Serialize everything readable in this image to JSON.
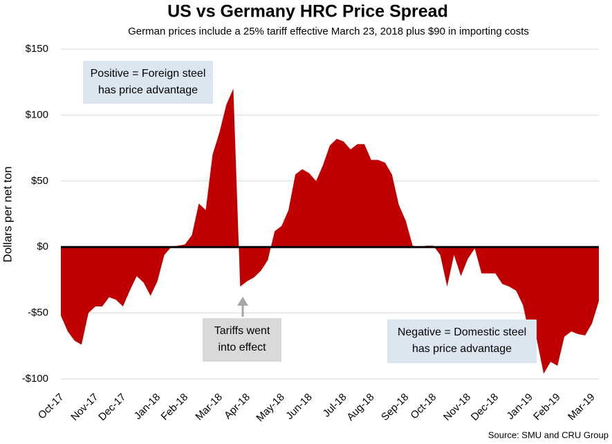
{
  "chart_data": {
    "type": "area",
    "title": "US vs Germany HRC Price Spread",
    "subtitle": "German prices include a 25% tariff effective March 23, 2018 plus $90 in importing costs",
    "y_label": "Dollars per net ton",
    "source": "Source: SMU and CRU Group",
    "annotations": [
      {
        "lines": [
          "Positive = Foreign steel",
          "has price advantage"
        ],
        "color": "#dce6f1"
      },
      {
        "lines": [
          "Tariffs went",
          "into effect"
        ],
        "color": "#d9d9d9"
      },
      {
        "lines": [
          "Negative = Domestic steel",
          "has price advantage"
        ],
        "color": "#dce6f1"
      }
    ],
    "color": "#c00000",
    "categories": [
      "Oct-17",
      null,
      null,
      null,
      null,
      "Nov-17",
      null,
      null,
      null,
      "Dec-17",
      null,
      null,
      null,
      null,
      "Jan-18",
      null,
      null,
      null,
      "Feb-18",
      null,
      null,
      null,
      null,
      "Mar-18",
      null,
      null,
      null,
      "Apr-18",
      null,
      null,
      null,
      null,
      "May-18",
      null,
      null,
      null,
      "Jun-18",
      null,
      null,
      null,
      null,
      "Jul-18",
      null,
      null,
      null,
      "Aug-18",
      null,
      null,
      null,
      null,
      "Sep-18",
      null,
      null,
      null,
      "Oct-18",
      null,
      null,
      null,
      null,
      "Nov-18",
      null,
      null,
      null,
      "Dec-18",
      null,
      null,
      null,
      null,
      "Jan-19",
      null,
      null,
      null,
      "Feb-19",
      null,
      null,
      null,
      null,
      "Mar-19",
      null
    ],
    "values": [
      -52,
      -64,
      -71,
      -74,
      -50,
      -45,
      -45,
      -38,
      -40,
      -45,
      -33,
      -22,
      -27,
      -37,
      -26,
      -6,
      0,
      1,
      2,
      9,
      33,
      28,
      70,
      87,
      108,
      120,
      -30,
      -26,
      -23,
      -18,
      -10,
      12,
      16,
      28,
      55,
      59,
      56,
      50,
      62,
      77,
      82,
      80,
      74,
      78,
      78,
      66,
      66,
      64,
      55,
      32,
      20,
      1,
      0,
      1,
      1,
      -6,
      -30,
      -6,
      -22,
      -9,
      -1,
      -20,
      -20,
      -20,
      -28,
      -30,
      -33,
      -44,
      -68,
      -70,
      -96,
      -87,
      -90,
      -68,
      -64,
      -66,
      -67,
      -58,
      -41
    ],
    "ylim": [
      -100,
      150
    ],
    "yticks": [
      {
        "value": -100,
        "label": "-$100"
      },
      {
        "value": -50,
        "label": "-$50"
      },
      {
        "value": 0,
        "label": "$0"
      },
      {
        "value": 50,
        "label": "$50"
      },
      {
        "value": 100,
        "label": "$100"
      },
      {
        "value": 150,
        "label": "$150"
      }
    ],
    "grid": true
  }
}
